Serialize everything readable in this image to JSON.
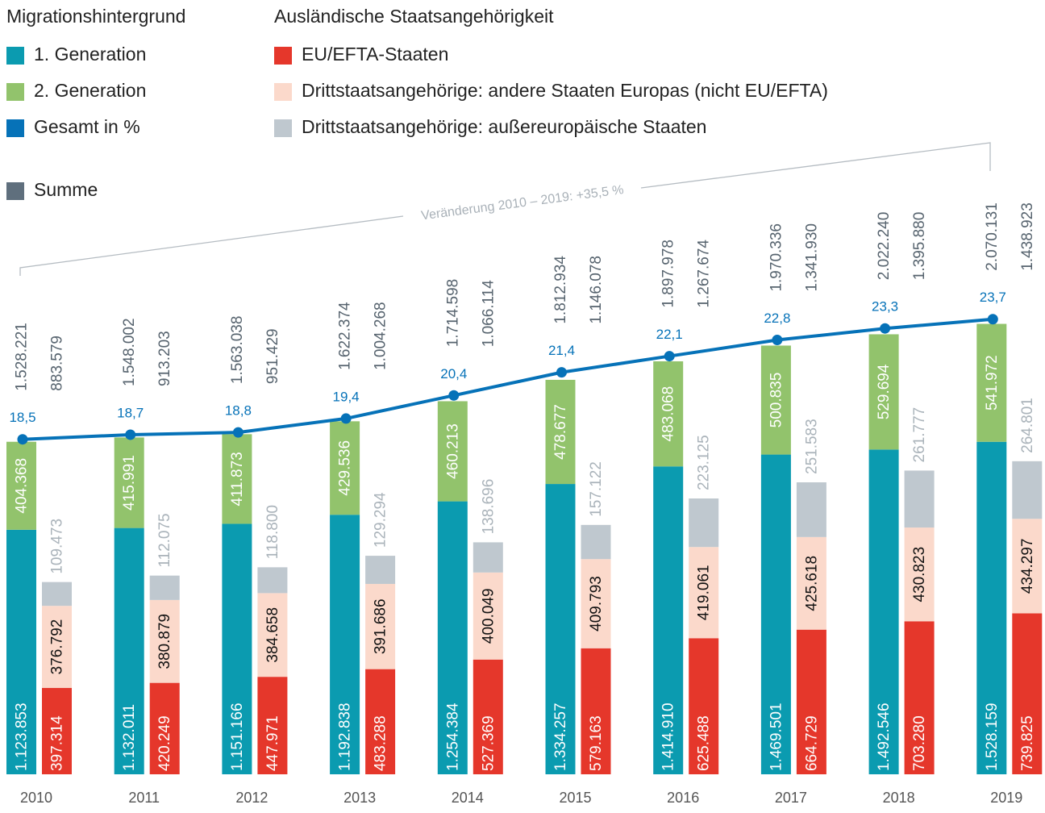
{
  "chart_data": {
    "type": "stacked_bar_line",
    "legend_titles": {
      "migration": "Migrationshintergrund",
      "nationality": "Ausländische Staatsangehörigkeit"
    },
    "annotation": "Veränderung 2010 – 2019: +35,5 %",
    "categories": [
      "2010",
      "2011",
      "2012",
      "2013",
      "2014",
      "2015",
      "2016",
      "2017",
      "2018",
      "2019"
    ],
    "ylim": [
      0,
      2150000
    ],
    "y2lim": [
      4,
      24.25
    ],
    "series": [
      {
        "name": "1. Generation",
        "color": "#0b9bb0",
        "label_color": "#ffffff",
        "stack": "migration",
        "values": [
          1123853,
          1132011,
          1151166,
          1192838,
          1254384,
          1334257,
          1414910,
          1469501,
          1492546,
          1528159
        ],
        "value_labels": [
          "1.123.853",
          "1.132.011",
          "1.151.166",
          "1.192.838",
          "1.254.384",
          "1.334.257",
          "1.414.910",
          "1.469.501",
          "1.492.546",
          "1.528.159"
        ]
      },
      {
        "name": "2. Generation",
        "color": "#92c36c",
        "label_color": "#ffffff",
        "stack": "migration",
        "values": [
          404368,
          415991,
          411873,
          429536,
          460213,
          478677,
          483068,
          500835,
          529694,
          541972
        ],
        "value_labels": [
          "404.368",
          "415.991",
          "411.873",
          "429.536",
          "460.213",
          "478.677",
          "483.068",
          "500.835",
          "529.694",
          "541.972"
        ]
      },
      {
        "name": "Gesamt in %",
        "color": "#0672b8",
        "label_color": "#0672b8",
        "axis": "y2",
        "type": "line",
        "values": [
          18.5,
          18.7,
          18.8,
          19.4,
          20.4,
          21.4,
          22.1,
          22.8,
          23.3,
          23.7
        ],
        "value_labels": [
          "18,5",
          "18,7",
          "18,8",
          "19,4",
          "20,4",
          "21,4",
          "22,1",
          "22,8",
          "23,3",
          "23,7"
        ]
      },
      {
        "name": "EU/EFTA-Staaten",
        "color": "#e5372b",
        "label_color": "#ffffff",
        "stack": "nationality",
        "values": [
          397314,
          420249,
          447971,
          483288,
          527369,
          579163,
          625488,
          664729,
          703280,
          739825
        ],
        "value_labels": [
          "397.314",
          "420.249",
          "447.971",
          "483.288",
          "527.369",
          "579.163",
          "625.488",
          "664.729",
          "703.280",
          "739.825"
        ]
      },
      {
        "name": "Drittstaatsangehörige: andere Staaten Europas (nicht EU/EFTA)",
        "color": "#fbd9cb",
        "label_color": "#111111",
        "stack": "nationality",
        "values": [
          376792,
          380879,
          384658,
          391686,
          400049,
          409793,
          419061,
          425618,
          430823,
          434297
        ],
        "value_labels": [
          "376.792",
          "380.879",
          "384.658",
          "391.686",
          "400.049",
          "409.793",
          "419.061",
          "425.618",
          "430.823",
          "434.297"
        ]
      },
      {
        "name": "Drittstaatsangehörige: außereuropäische Staaten",
        "color": "#bfc8cf",
        "label_color": "#aab3ba",
        "stack": "nationality",
        "values": [
          109473,
          112075,
          118800,
          129294,
          138696,
          157122,
          223125,
          251583,
          261777,
          264801
        ],
        "value_labels": [
          "109.473",
          "112.075",
          "118.800",
          "129.294",
          "138.696",
          "157.122",
          "223.125",
          "251.583",
          "261.777",
          "264.801"
        ]
      }
    ],
    "totals": {
      "name": "Summe",
      "color": "#5f6f7d",
      "label_color": "#56636e",
      "migration": {
        "values": [
          1528221,
          1548002,
          1563038,
          1622374,
          1714598,
          1812934,
          1897978,
          1970336,
          2022240,
          2070131
        ],
        "value_labels": [
          "1.528.221",
          "1.548.002",
          "1.563.038",
          "1.622.374",
          "1.714.598",
          "1.812.934",
          "1.897.978",
          "1.970.336",
          "2.022.240",
          "2.070.131"
        ]
      },
      "nationality": {
        "values": [
          883579,
          913203,
          951429,
          1004268,
          1066114,
          1146078,
          1267674,
          1341930,
          1395880,
          1438923
        ],
        "value_labels": [
          "883.579",
          "913.203",
          "951.429",
          "1.004.268",
          "1.066.114",
          "1.146.078",
          "1.267.674",
          "1.341.930",
          "1.395.880",
          "1.438.923"
        ]
      }
    }
  }
}
